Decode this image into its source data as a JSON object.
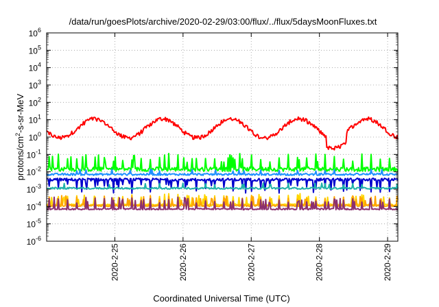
{
  "chart_data": {
    "type": "line",
    "title": "/data/run/goesPlots/archive/2020-02-29/03:00/flux/../flux/5daysMoonFluxes.txt",
    "xlabel": "Coordinated Universal Time (UTC)",
    "ylabel_parts": [
      "protons/cm",
      "2",
      "-s-sr-MeV"
    ],
    "y_scale": "log",
    "ylim_exponents": [
      -6,
      6
    ],
    "y_ticks": [
      {
        "base": "10",
        "exp": "6"
      },
      {
        "base": "10",
        "exp": "5"
      },
      {
        "base": "10",
        "exp": "4"
      },
      {
        "base": "10",
        "exp": "3"
      },
      {
        "base": "10",
        "exp": "2"
      },
      {
        "base": "10",
        "exp": "1"
      },
      {
        "base": "10",
        "exp": "0"
      },
      {
        "base": "10",
        "exp": "-1"
      },
      {
        "base": "10",
        "exp": "-2"
      },
      {
        "base": "10",
        "exp": "-3"
      },
      {
        "base": "10",
        "exp": "-4"
      },
      {
        "base": "10",
        "exp": "-5"
      },
      {
        "base": "10",
        "exp": "-6"
      }
    ],
    "x_tick_labels": [
      "2020-2-25",
      "2020-2-26",
      "2020-2-27",
      "2020-2-28",
      "2020-2-29"
    ],
    "x_range_days": [
      24.0,
      29.15
    ],
    "x_tick_days": [
      25,
      26,
      27,
      28,
      29
    ],
    "grid": true,
    "series": [
      {
        "color": "#ff0000",
        "style": "diurnal",
        "base": 0.5,
        "amp": 0.55,
        "spike": 0.0,
        "noise": 0.12
      },
      {
        "color": "#00ff00",
        "style": "spiky",
        "base": -1.85,
        "amp": 0.0,
        "spike": 0.8,
        "noise": 0.12
      },
      {
        "color": "#1e90ff",
        "style": "flat",
        "base": -2.15,
        "amp": 0.0,
        "spike": 0.25,
        "noise": 0.06
      },
      {
        "color": "#0000cd",
        "style": "dipping",
        "base": -2.45,
        "amp": 0.0,
        "spike": -0.5,
        "noise": 0.08
      },
      {
        "color": "#20b2aa",
        "style": "flat",
        "base": -2.95,
        "amp": 0.0,
        "spike": 0.25,
        "noise": 0.05
      },
      {
        "color": "#ffd700",
        "style": "spiky",
        "base": -3.9,
        "amp": 0.0,
        "spike": 0.55,
        "noise": 0.05
      },
      {
        "color": "#ffa500",
        "style": "spiky",
        "base": -3.95,
        "amp": 0.0,
        "spike": 0.5,
        "noise": 0.05
      },
      {
        "color": "#8b2f6f",
        "style": "spiky",
        "base": -4.15,
        "amp": 0.0,
        "spike": 0.6,
        "noise": 0.04
      }
    ]
  }
}
